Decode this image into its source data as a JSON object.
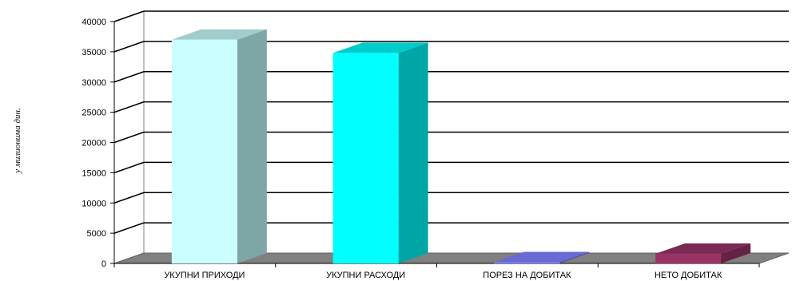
{
  "chart_data": {
    "type": "bar",
    "title": "",
    "xlabel": "",
    "ylabel": "у милионима дин.",
    "categories": [
      "УКУПНИ ПРИХОДИ",
      "УКУПНИ РАСХОДИ",
      "ПОРЕЗ НА ДОБИТАК",
      "НЕТО ДОБИТАК"
    ],
    "values": [
      37000,
      34800,
      200,
      1600
    ],
    "ylim": [
      0,
      40000
    ],
    "yticks": [
      "0",
      "5000",
      "10000",
      "15000",
      "20000",
      "25000",
      "30000",
      "35000",
      "40000"
    ],
    "grid": true,
    "colors": [
      {
        "front": "#ccffff",
        "side": "#7fa6a6",
        "top": "#a0cccc"
      },
      {
        "front": "#00ffff",
        "side": "#00a6a6",
        "top": "#00cccc"
      },
      {
        "front": "#8080ff",
        "side": "#5454a6",
        "top": "#6a6ad4"
      },
      {
        "front": "#993366",
        "side": "#662244",
        "top": "#7a2952"
      }
    ]
  }
}
